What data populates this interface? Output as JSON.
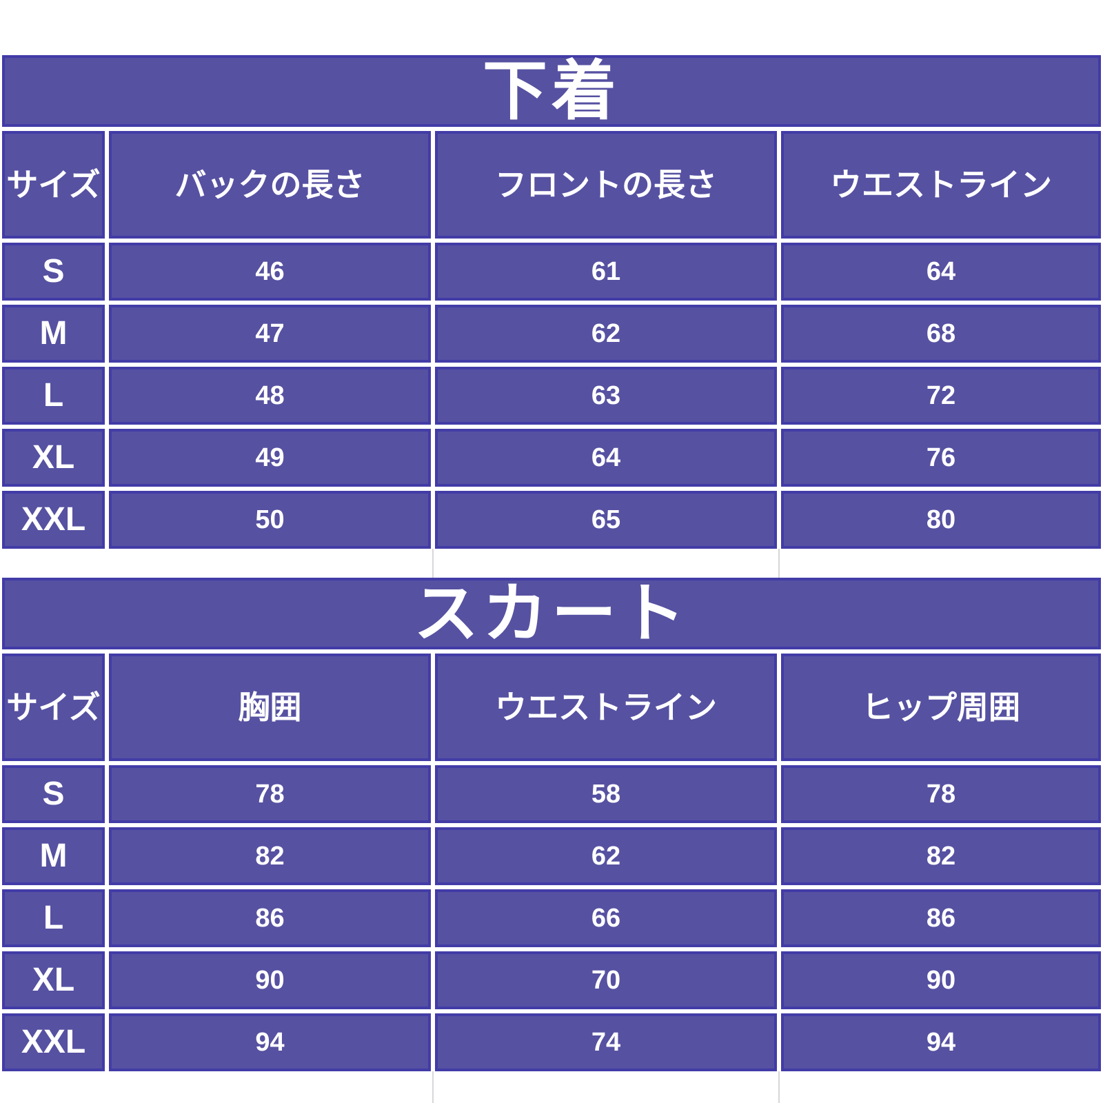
{
  "colors": {
    "cell_fill": "#5651A1",
    "cell_border": "#423CA7",
    "text": "#FFFFFF",
    "page_background": "#FFFFFF",
    "shadow_line": "#D7D7DB"
  },
  "tables": [
    {
      "title": "下着",
      "columns": [
        "サイズ",
        "バックの長さ",
        "フロントの長さ",
        "ウエストライン"
      ],
      "rows": [
        {
          "size": "S",
          "values": [
            "46",
            "61",
            "64"
          ]
        },
        {
          "size": "M",
          "values": [
            "47",
            "62",
            "68"
          ]
        },
        {
          "size": "L",
          "values": [
            "48",
            "63",
            "72"
          ]
        },
        {
          "size": "XL",
          "values": [
            "49",
            "64",
            "76"
          ]
        },
        {
          "size": "XXL",
          "values": [
            "50",
            "65",
            "80"
          ]
        }
      ]
    },
    {
      "title": "スカート",
      "columns": [
        "サイズ",
        "胸囲",
        "ウエストライン",
        "ヒップ周囲"
      ],
      "rows": [
        {
          "size": "S",
          "values": [
            "78",
            "58",
            "78"
          ]
        },
        {
          "size": "M",
          "values": [
            "82",
            "62",
            "82"
          ]
        },
        {
          "size": "L",
          "values": [
            "86",
            "66",
            "86"
          ]
        },
        {
          "size": "XL",
          "values": [
            "90",
            "70",
            "90"
          ]
        },
        {
          "size": "XXL",
          "values": [
            "94",
            "74",
            "94"
          ]
        }
      ]
    }
  ]
}
